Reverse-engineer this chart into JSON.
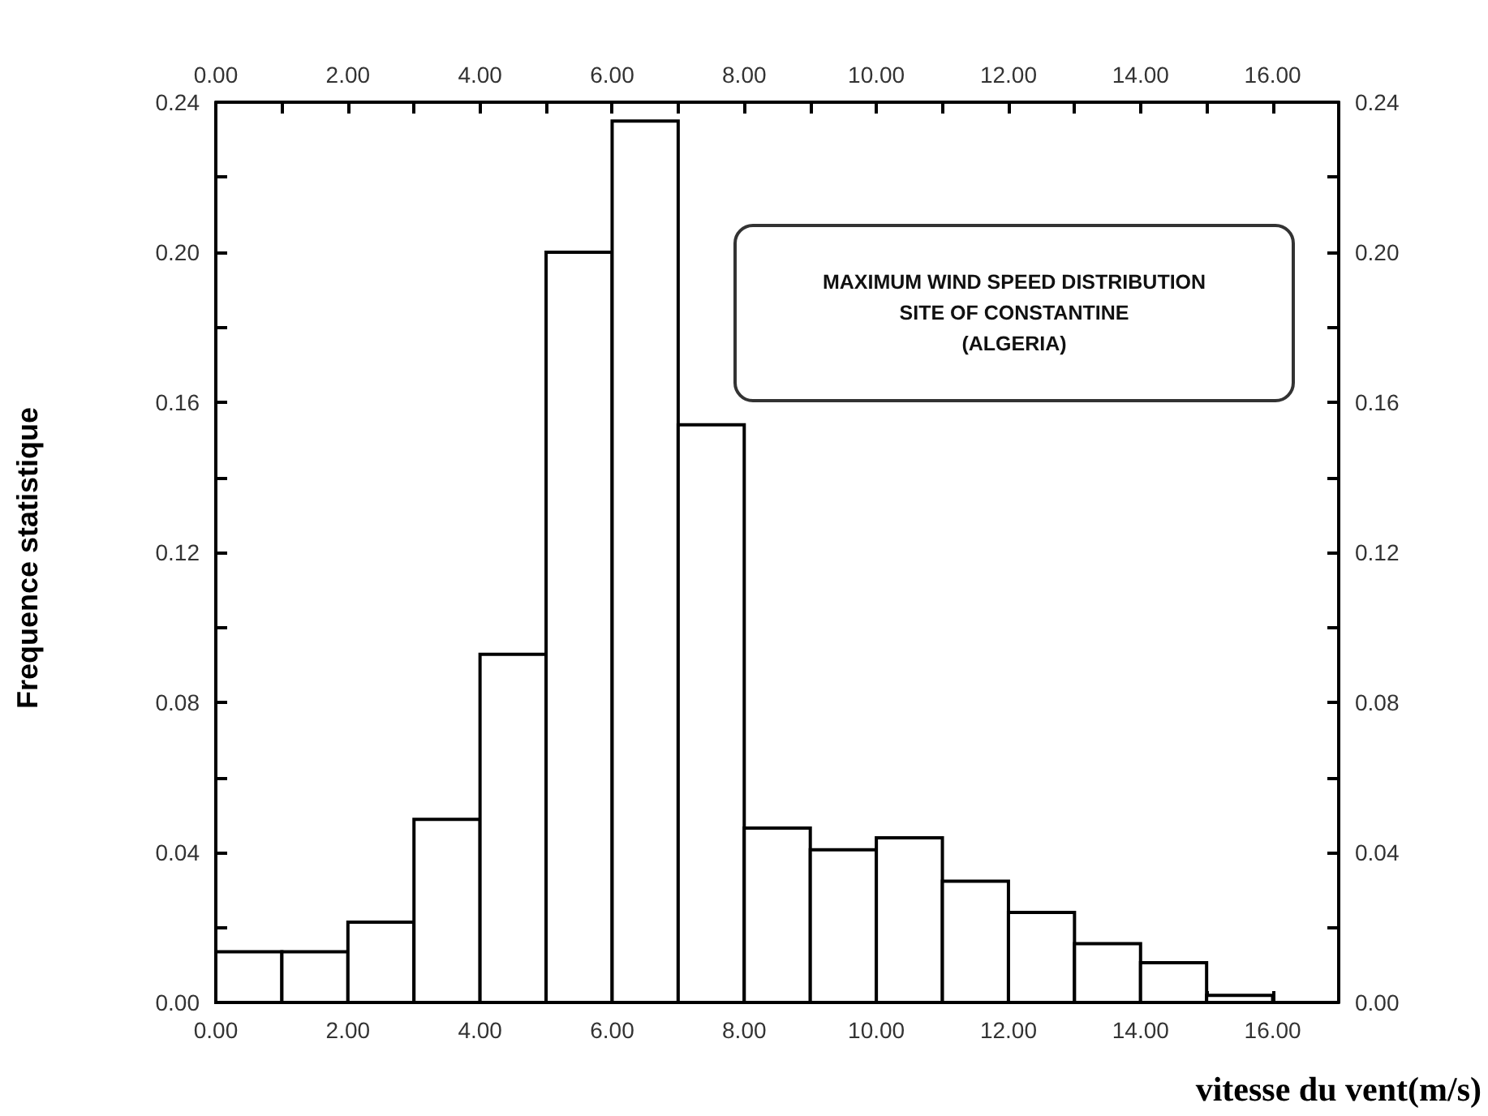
{
  "chart_data": {
    "type": "histogram",
    "xlabel": "vitesse du vent(m/s)",
    "ylabel": "Frequence statistique",
    "annotations": [
      "MAXIMUM WIND SPEED DISTRIBUTION\nSITE OF CONSTANTINE\n(ALGERIA)"
    ],
    "bins": [
      0,
      1,
      2,
      3,
      4,
      5,
      6,
      7,
      8,
      9,
      10,
      11,
      12,
      13,
      14,
      15,
      16
    ],
    "values": [
      0.0135,
      0.0135,
      0.0214,
      0.0488,
      0.0928,
      0.2,
      0.235,
      0.154,
      0.0465,
      0.0407,
      0.0439,
      0.0323,
      0.024,
      0.0157,
      0.0106,
      0.0019
    ],
    "color": "#ffffff",
    "xlim": [
      0,
      17
    ],
    "xticks": [
      {
        "value": 0,
        "label": "0.00"
      },
      {
        "value": 1,
        "label": null
      },
      {
        "value": 2,
        "label": "2.00"
      },
      {
        "value": 3,
        "label": null
      },
      {
        "value": 4,
        "label": "4.00"
      },
      {
        "value": 5,
        "label": null
      },
      {
        "value": 6,
        "label": "6.00"
      },
      {
        "value": 7,
        "label": null
      },
      {
        "value": 8,
        "label": "8.00"
      },
      {
        "value": 9,
        "label": null
      },
      {
        "value": 10,
        "label": "10.00"
      },
      {
        "value": 11,
        "label": null
      },
      {
        "value": 12,
        "label": "12.00"
      },
      {
        "value": 13,
        "label": null
      },
      {
        "value": 14,
        "label": "14.00"
      },
      {
        "value": 15,
        "label": null
      },
      {
        "value": 16,
        "label": "16.00"
      }
    ],
    "x2lim": [
      0,
      17
    ],
    "x2ticks": [
      {
        "value": 0,
        "label": "0.00"
      },
      {
        "value": 1,
        "label": null
      },
      {
        "value": 2,
        "label": "2.00"
      },
      {
        "value": 3,
        "label": null
      },
      {
        "value": 4,
        "label": "4.00"
      },
      {
        "value": 5,
        "label": null
      },
      {
        "value": 6,
        "label": "6.00"
      },
      {
        "value": 7,
        "label": null
      },
      {
        "value": 8,
        "label": "8.00"
      },
      {
        "value": 9,
        "label": null
      },
      {
        "value": 10,
        "label": "10.00"
      },
      {
        "value": 11,
        "label": null
      },
      {
        "value": 12,
        "label": "12.00"
      },
      {
        "value": 13,
        "label": null
      },
      {
        "value": 14,
        "label": "14.00"
      },
      {
        "value": 15,
        "label": null
      },
      {
        "value": 16,
        "label": "16.00"
      }
    ],
    "ylim": [
      0,
      0.24
    ],
    "yticks": [
      {
        "value": 0,
        "label": "0.00"
      },
      {
        "value": 0.02,
        "label": null
      },
      {
        "value": 0.04,
        "label": "0.04"
      },
      {
        "value": 0.06,
        "label": null
      },
      {
        "value": 0.08,
        "label": "0.08"
      },
      {
        "value": 0.1,
        "label": null
      },
      {
        "value": 0.12,
        "label": "0.12"
      },
      {
        "value": 0.14,
        "label": null
      },
      {
        "value": 0.16,
        "label": "0.16"
      },
      {
        "value": 0.18,
        "label": null
      },
      {
        "value": 0.2,
        "label": "0.20"
      },
      {
        "value": 0.22,
        "label": null
      },
      {
        "value": 0.24,
        "label": "0.24"
      }
    ],
    "y2lim": [
      0,
      0.24
    ],
    "y2ticks": [
      {
        "value": 0,
        "label": "0.00"
      },
      {
        "value": 0.02,
        "label": null
      },
      {
        "value": 0.04,
        "label": "0.04"
      },
      {
        "value": 0.06,
        "label": null
      },
      {
        "value": 0.08,
        "label": "0.08"
      },
      {
        "value": 0.1,
        "label": null
      },
      {
        "value": 0.12,
        "label": "0.12"
      },
      {
        "value": 0.14,
        "label": null
      },
      {
        "value": 0.16,
        "label": "0.16"
      },
      {
        "value": 0.18,
        "label": null
      },
      {
        "value": 0.2,
        "label": "0.20"
      },
      {
        "value": 0.22,
        "label": null
      },
      {
        "value": 0.24,
        "label": "0.24"
      }
    ],
    "grid": false
  }
}
